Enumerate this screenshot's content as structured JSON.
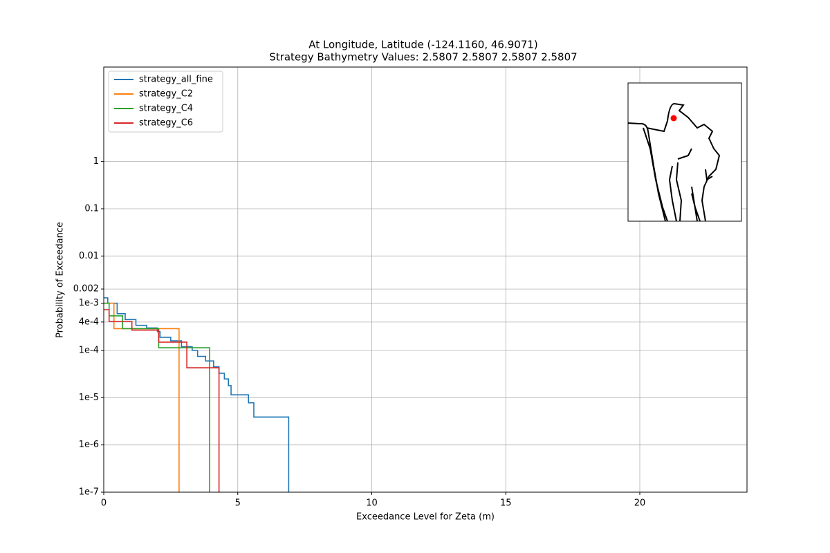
{
  "chart_data": {
    "type": "line",
    "step": "post",
    "title": "At Longitude, Latitude (-124.1160,  46.9071)",
    "subtitle": "Strategy Bathymetry Values:    2.5807    2.5807    2.5807    2.5807",
    "x_label": "Exceedance Level for Zeta (m)",
    "y_label": "Probability of Exceedance",
    "xlim": [
      0,
      24
    ],
    "xticks": [
      0,
      5,
      10,
      15,
      20
    ],
    "ylim": [
      1e-07,
      100
    ],
    "log_y": true,
    "yticks": [
      {
        "value": 1e-07,
        "label": "1e-7"
      },
      {
        "value": 1e-06,
        "label": "1e-6"
      },
      {
        "value": 1e-05,
        "label": "1e-5"
      },
      {
        "value": 0.0001,
        "label": "1e-4"
      },
      {
        "value": 0.0004,
        "label": "4e-4"
      },
      {
        "value": 0.001,
        "label": "1e-3"
      },
      0.002,
      0.01,
      0.1,
      1
    ],
    "grid": true,
    "legend": "upper left",
    "series": [
      {
        "name": "strategy_all_fine",
        "color": "#1f77b4",
        "x": [
          0,
          0.15,
          0.5,
          0.8,
          1.2,
          1.6,
          2.0,
          2.1,
          2.5,
          2.9,
          3.3,
          3.5,
          3.8,
          4.1,
          4.3,
          4.5,
          4.65,
          4.75,
          5.4,
          5.6,
          6.9
        ],
        "values": [
          0.0013,
          0.001,
          0.0006,
          0.00045,
          0.00034,
          0.0003,
          0.00025,
          0.00019,
          0.00016,
          0.00012,
          0.0001,
          7.5e-05,
          6e-05,
          4.5e-05,
          3.3e-05,
          2.5e-05,
          1.8e-05,
          1.15e-05,
          7.8e-06,
          3.9e-06,
          1e-07
        ]
      },
      {
        "name": "strategy_C2",
        "color": "#ff7f0e",
        "x": [
          0,
          0.38,
          2.81
        ],
        "values": [
          0.001,
          0.00029,
          1e-07
        ]
      },
      {
        "name": "strategy_C4",
        "color": "#2ca02c",
        "x": [
          0,
          0.2,
          0.7,
          2.05,
          3.95
        ],
        "values": [
          0.001,
          0.00054,
          0.00029,
          0.000114,
          1e-07
        ]
      },
      {
        "name": "strategy_C6",
        "color": "#d62728",
        "x": [
          0,
          0.2,
          1.05,
          2.05,
          3.1,
          4.3
        ],
        "values": [
          0.00073,
          0.00041,
          0.00027,
          0.00015,
          4.3e-05,
          1e-07
        ]
      }
    ]
  }
}
